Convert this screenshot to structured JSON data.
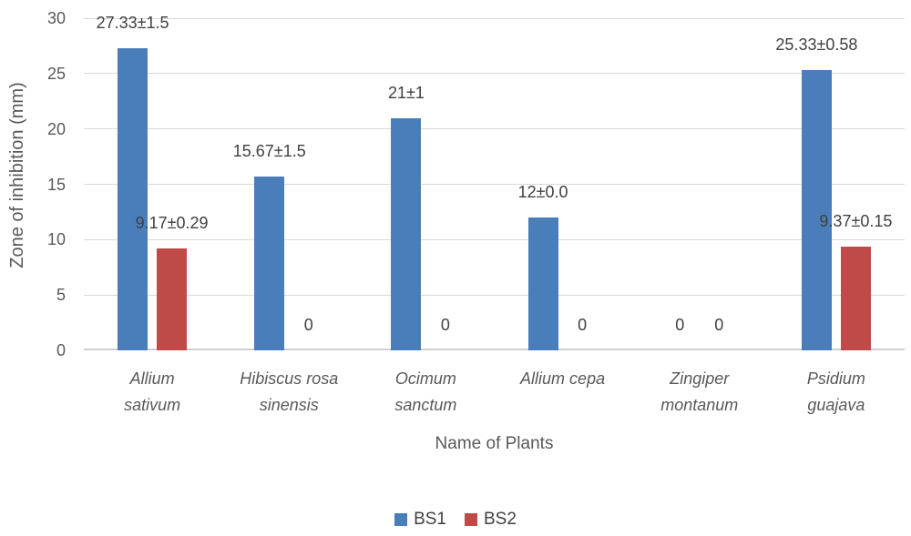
{
  "chart_data": {
    "type": "bar",
    "title": "",
    "xlabel": "Name of Plants",
    "ylabel": "Zone of inhibition (mm)",
    "categories": [
      "Allium sativum",
      "Hibiscus rosa sinensis",
      "Ocimum sanctum",
      "Allium cepa",
      "Zingiper montanum",
      "Psidium guajava"
    ],
    "series": [
      {
        "name": "BS1",
        "color": "#4A7EBB",
        "values": [
          27.33,
          15.67,
          21,
          12,
          0,
          25.33
        ],
        "data_labels": [
          "27.33±1.5",
          "15.67±1.5",
          "21±1",
          "12±0.0",
          "0",
          "25.33±0.58"
        ]
      },
      {
        "name": "BS2",
        "color": "#BE4B48",
        "values": [
          9.17,
          0,
          0,
          0,
          0,
          9.37
        ],
        "data_labels": [
          "9.17±0.29",
          "0",
          "0",
          "0",
          "0",
          "9.37±0.15"
        ]
      }
    ],
    "ylim": [
      0,
      30
    ],
    "ytick_values": [
      0,
      5,
      10,
      15,
      20,
      25,
      30
    ],
    "ytick_labels": [
      "0",
      "5",
      "10",
      "15",
      "20",
      "25",
      "30"
    ],
    "grid": true,
    "gridline_color": "#d9d9d9",
    "legend_position": "bottom"
  }
}
